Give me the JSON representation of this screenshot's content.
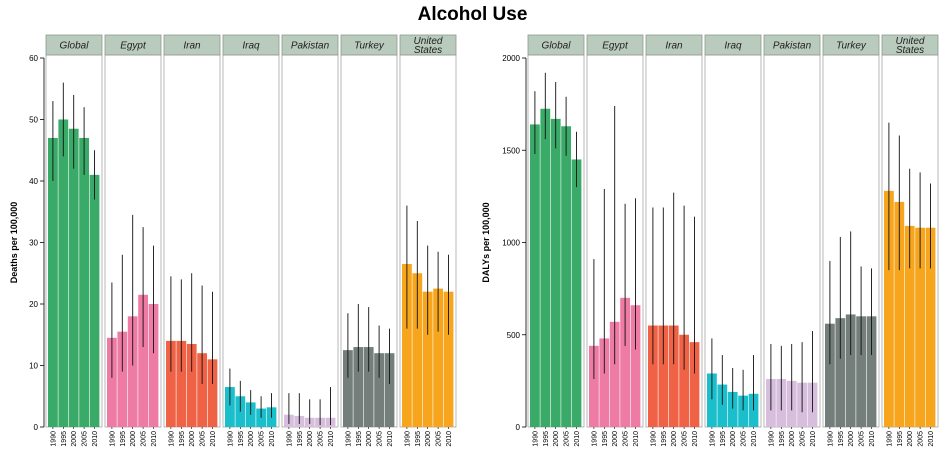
{
  "title": "Alcohol Use",
  "colors": {
    "Global": "#3aaa68",
    "Egypt": "#ee7ba4",
    "Iran": "#f06245",
    "Iraq": "#1bbfcc",
    "Pakistan": "#d6bedc",
    "Turkey": "#747f7c",
    "United States": "#f7a51c",
    "strip_bg": "#b9cbbd",
    "error_bar": "#111111"
  },
  "chart_data": [
    {
      "type": "bar",
      "ylabel": "Deaths per 100,000",
      "ylim": [
        0,
        60
      ],
      "yticks": [
        0,
        10,
        20,
        30,
        40,
        50,
        60
      ],
      "years": [
        "1990",
        "1995",
        "2000",
        "2005",
        "2010"
      ],
      "panels": [
        {
          "name": "Global",
          "values": [
            47,
            50,
            48.5,
            47,
            41
          ],
          "lower": [
            40,
            44,
            42,
            41,
            37
          ],
          "upper": [
            53,
            56,
            54,
            52,
            45
          ]
        },
        {
          "name": "Egypt",
          "values": [
            14.5,
            15.5,
            18,
            21.5,
            20
          ],
          "lower": [
            8,
            9,
            10,
            13,
            12
          ],
          "upper": [
            23.5,
            28,
            34.5,
            32.5,
            29.5
          ]
        },
        {
          "name": "Iran",
          "values": [
            14,
            14,
            13.5,
            12,
            11
          ],
          "lower": [
            9,
            9,
            9,
            7,
            7
          ],
          "upper": [
            24.5,
            24,
            25,
            23,
            22
          ]
        },
        {
          "name": "Iraq",
          "values": [
            6.5,
            5,
            4,
            3,
            3.2
          ],
          "lower": [
            3.5,
            2.5,
            2,
            1.5,
            1.5
          ],
          "upper": [
            9.5,
            7.5,
            6,
            5,
            5.5
          ]
        },
        {
          "name": "Pakistan",
          "values": [
            2,
            1.8,
            1.5,
            1.5,
            1.5
          ],
          "lower": [
            0.5,
            0.5,
            0.5,
            0.3,
            0.3
          ],
          "upper": [
            5.5,
            5.5,
            4.5,
            4.5,
            6.5
          ]
        },
        {
          "name": "Turkey",
          "values": [
            12.5,
            13,
            13,
            12,
            12
          ],
          "lower": [
            8,
            9,
            9,
            8,
            7
          ],
          "upper": [
            18.5,
            20,
            19.5,
            16.5,
            16
          ]
        },
        {
          "name": "United\nStates",
          "values": [
            26.5,
            25,
            22,
            22.5,
            22
          ],
          "lower": [
            16,
            16,
            15,
            15.5,
            15
          ],
          "upper": [
            36,
            33.5,
            29.5,
            28.5,
            28
          ]
        }
      ]
    },
    {
      "type": "bar",
      "ylabel": "DALYs per 100,000",
      "ylim": [
        0,
        2000
      ],
      "yticks": [
        0,
        500,
        1000,
        1500,
        2000
      ],
      "years": [
        "1990",
        "1995",
        "2000",
        "2005",
        "2010"
      ],
      "panels": [
        {
          "name": "Global",
          "values": [
            1640,
            1725,
            1670,
            1630,
            1450
          ],
          "lower": [
            1480,
            1560,
            1510,
            1470,
            1300
          ],
          "upper": [
            1820,
            1920,
            1870,
            1790,
            1600
          ]
        },
        {
          "name": "Egypt",
          "values": [
            440,
            480,
            570,
            700,
            660
          ],
          "lower": [
            260,
            290,
            340,
            440,
            420
          ],
          "upper": [
            910,
            1290,
            1740,
            1210,
            1240
          ]
        },
        {
          "name": "Iran",
          "values": [
            550,
            550,
            550,
            500,
            460
          ],
          "lower": [
            340,
            340,
            340,
            310,
            290
          ],
          "upper": [
            1190,
            1190,
            1270,
            1200,
            1140
          ]
        },
        {
          "name": "Iraq",
          "values": [
            290,
            230,
            190,
            170,
            180
          ],
          "lower": [
            150,
            120,
            100,
            90,
            90
          ],
          "upper": [
            480,
            390,
            320,
            310,
            390
          ]
        },
        {
          "name": "Pakistan",
          "values": [
            260,
            260,
            250,
            240,
            240
          ],
          "lower": [
            90,
            90,
            90,
            80,
            80
          ],
          "upper": [
            450,
            440,
            450,
            460,
            520
          ]
        },
        {
          "name": "Turkey",
          "values": [
            560,
            590,
            610,
            600,
            600
          ],
          "lower": [
            340,
            370,
            390,
            390,
            390
          ],
          "upper": [
            900,
            1030,
            1060,
            870,
            860
          ]
        },
        {
          "name": "United\nStates",
          "values": [
            1280,
            1220,
            1090,
            1080,
            1080
          ],
          "lower": [
            850,
            850,
            860,
            860,
            860
          ],
          "upper": [
            1650,
            1580,
            1400,
            1380,
            1320
          ]
        }
      ]
    }
  ]
}
